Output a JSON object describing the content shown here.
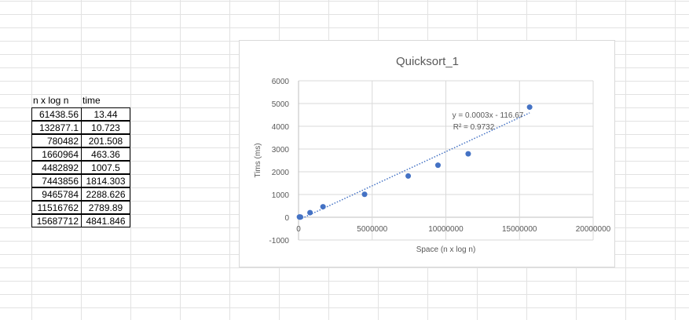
{
  "sheet": {
    "headers": {
      "nlogn": "n x log n",
      "time": "time"
    },
    "rows": [
      {
        "nlogn": "61438.56",
        "time": "13.44"
      },
      {
        "nlogn": "132877.1",
        "time": "10.723"
      },
      {
        "nlogn": "780482",
        "time": "201.508"
      },
      {
        "nlogn": "1660964",
        "time": "463.36"
      },
      {
        "nlogn": "4482892",
        "time": "1007.5"
      },
      {
        "nlogn": "7443856",
        "time": "1814.303"
      },
      {
        "nlogn": "9465784",
        "time": "2288.626"
      },
      {
        "nlogn": "11516762",
        "time": "2789.89"
      },
      {
        "nlogn": "15687712",
        "time": "4841.846"
      }
    ]
  },
  "chart_data": {
    "type": "scatter",
    "title": "Quicksort_1",
    "xlabel": "Space (n x log n)",
    "ylabel": "Tims (ms)",
    "xlim": [
      0,
      20000000
    ],
    "ylim": [
      -1000,
      6000
    ],
    "xticks": [
      {
        "value": 0,
        "label": "0"
      },
      {
        "value": 5000000,
        "label": "5000000"
      },
      {
        "value": 10000000,
        "label": "10000000"
      },
      {
        "value": 15000000,
        "label": "15000000"
      },
      {
        "value": 20000000,
        "label": "20000000"
      }
    ],
    "yticks": [
      {
        "value": -1000,
        "label": "-1000"
      },
      {
        "value": 0,
        "label": "0"
      },
      {
        "value": 1000,
        "label": "1000"
      },
      {
        "value": 2000,
        "label": "2000"
      },
      {
        "value": 3000,
        "label": "3000"
      },
      {
        "value": 4000,
        "label": "4000"
      },
      {
        "value": 5000,
        "label": "5000"
      },
      {
        "value": 6000,
        "label": "6000"
      }
    ],
    "grid": true,
    "series": [
      {
        "x": [
          61438.56,
          132877.1,
          780482,
          1660964,
          4482892,
          7443856,
          9465784,
          11516762,
          15687712
        ],
        "y": [
          13.44,
          10.723,
          201.508,
          463.36,
          1007.5,
          1814.303,
          2288.626,
          2789.89,
          4841.846
        ]
      }
    ],
    "trendline": {
      "type": "linear",
      "slope": 0.0003,
      "intercept": -116.67,
      "equation": "y = 0.0003x - 116.67",
      "r2": "R² = 0.9732"
    },
    "colors": {
      "marker": "#4472c4",
      "grid": "#d9d9d9",
      "axis": "#bfbfbf",
      "text": "#595959"
    }
  }
}
